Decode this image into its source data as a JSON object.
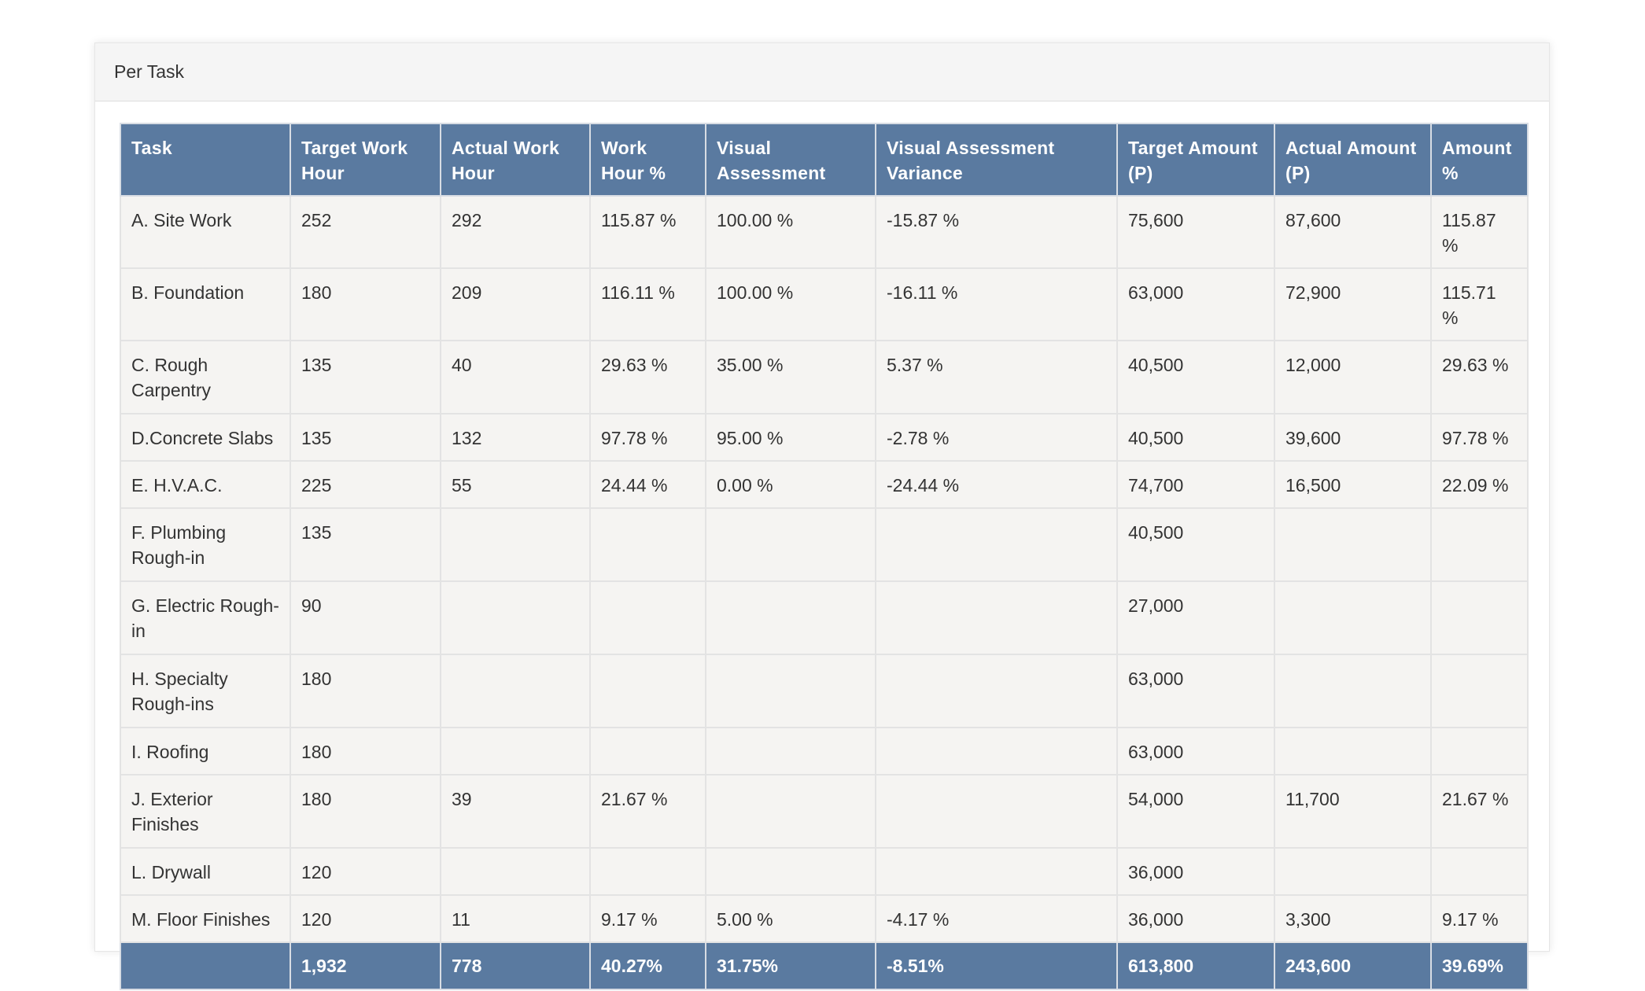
{
  "panel": {
    "title": "Per Task"
  },
  "table": {
    "headers": [
      "Task",
      "Target Work Hour",
      "Actual Work Hour",
      "Work Hour %",
      "Visual Assessment",
      "Visual Assessment Variance",
      "Target Amount (P)",
      "Actual Amount (P)",
      "Amount %"
    ],
    "rows": [
      [
        "A. Site Work",
        "252",
        "292",
        "115.87 %",
        "100.00 %",
        "-15.87 %",
        "75,600",
        "87,600",
        "115.87 %"
      ],
      [
        "B. Foundation",
        "180",
        "209",
        "116.11 %",
        "100.00 %",
        "-16.11 %",
        "63,000",
        "72,900",
        "115.71 %"
      ],
      [
        "C. Rough Carpentry",
        "135",
        "40",
        "29.63 %",
        "35.00 %",
        "5.37 %",
        "40,500",
        "12,000",
        "29.63 %"
      ],
      [
        "D.Concrete Slabs",
        "135",
        "132",
        "97.78 %",
        "95.00 %",
        "-2.78 %",
        "40,500",
        "39,600",
        "97.78 %"
      ],
      [
        "E. H.V.A.C.",
        "225",
        "55",
        "24.44 %",
        "0.00 %",
        "-24.44 %",
        "74,700",
        "16,500",
        "22.09 %"
      ],
      [
        "F. Plumbing Rough-in",
        "135",
        "",
        "",
        "",
        "",
        "40,500",
        "",
        ""
      ],
      [
        "G. Electric Rough-in",
        "90",
        "",
        "",
        "",
        "",
        "27,000",
        "",
        ""
      ],
      [
        "H. Specialty Rough-ins",
        "180",
        "",
        "",
        "",
        "",
        "63,000",
        "",
        ""
      ],
      [
        "I. Roofing",
        "180",
        "",
        "",
        "",
        "",
        "63,000",
        "",
        ""
      ],
      [
        "J. Exterior Finishes",
        "180",
        "39",
        "21.67 %",
        "",
        "",
        "54,000",
        "11,700",
        "21.67 %"
      ],
      [
        "L. Drywall",
        "120",
        "",
        "",
        "",
        "",
        "36,000",
        "",
        ""
      ],
      [
        "M. Floor Finishes",
        "120",
        "11",
        "9.17 %",
        "5.00 %",
        "-4.17 %",
        "36,000",
        "3,300",
        "9.17 %"
      ]
    ],
    "totals": [
      "",
      "1,932",
      "778",
      "40.27%",
      "31.75%",
      "-8.51%",
      "613,800",
      "243,600",
      "39.69%"
    ]
  },
  "colors": {
    "header_bg": "#5a7aa0",
    "cell_bg": "#f5f4f2",
    "panel_heading_bg": "#f5f5f5"
  }
}
